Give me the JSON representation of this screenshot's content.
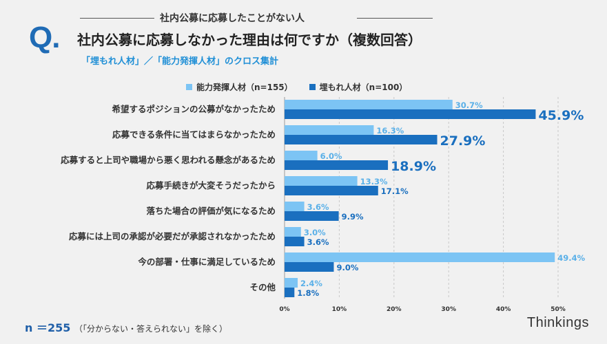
{
  "header": {
    "q_mark": "Q.",
    "small_title": "社内公募に応募したことがない人",
    "title": "社内公募に応募しなかった理由は何ですか（複数回答）",
    "subtitle": "「埋もれ人材」／「能力発揮人材」のクロス集計"
  },
  "footer": {
    "n_label": "n ＝255",
    "note": "（「分からない・答えられない」を除く）",
    "brand": "Thinkings"
  },
  "colors": {
    "light": "#7cc4f4",
    "dark": "#1a6fbf",
    "light_text": "#5ab0e8",
    "dark_text": "#1a6fbf"
  },
  "chart_data": {
    "type": "bar",
    "orientation": "horizontal",
    "categories": [
      "希望するポジションの公募がなかったため",
      "応募できる条件に当てはまらなかったため",
      "応募すると上司や職場から悪く思われる懸念があるため",
      "応募手続きが大変そうだったから",
      "落ちた場合の評価が気になるため",
      "応募には上司の承認が必要だが承認されなかったため",
      "今の部署・仕事に満足しているため",
      "その他"
    ],
    "series": [
      {
        "name": "能力発揮人材（n=155）",
        "values": [
          30.7,
          16.3,
          6.0,
          13.3,
          3.6,
          3.0,
          49.4,
          2.4
        ],
        "labels": [
          "30.7%",
          "16.3%",
          "6.0%",
          "13.3%",
          "3.6%",
          "3.0%",
          "49.4%",
          "2.4%"
        ]
      },
      {
        "name": "埋もれ人材（n=100）",
        "values": [
          45.9,
          27.9,
          18.9,
          17.1,
          9.9,
          3.6,
          9.0,
          1.8
        ],
        "labels": [
          "45.9%",
          "27.9%",
          "18.9%",
          "17.1%",
          "9.9%",
          "3.6%",
          "9.0%",
          "1.8%"
        ]
      }
    ],
    "highlight_dark": [
      true,
      true,
      true,
      false,
      false,
      false,
      false,
      false
    ],
    "xlim": [
      0,
      50
    ],
    "xticks": [
      0,
      10,
      20,
      30,
      40,
      50
    ],
    "xtick_labels": [
      "0%",
      "10%",
      "20%",
      "30%",
      "40%",
      "50%"
    ],
    "grid": "vertical-dashed",
    "legend_position": "top"
  }
}
